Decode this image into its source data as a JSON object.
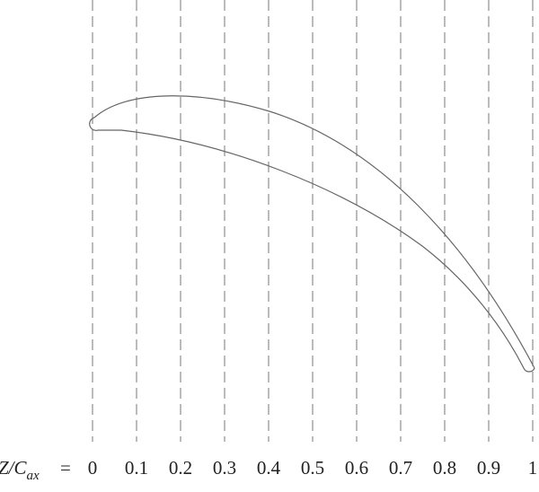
{
  "axis_label": {
    "symbol": "Z/C",
    "subscript": "ax",
    "equals": "="
  },
  "positions": [
    "0",
    "0.1",
    "0.2",
    "0.3",
    "0.4",
    "0.5",
    "0.6",
    "0.7",
    "0.8",
    "0.9",
    "1"
  ]
}
